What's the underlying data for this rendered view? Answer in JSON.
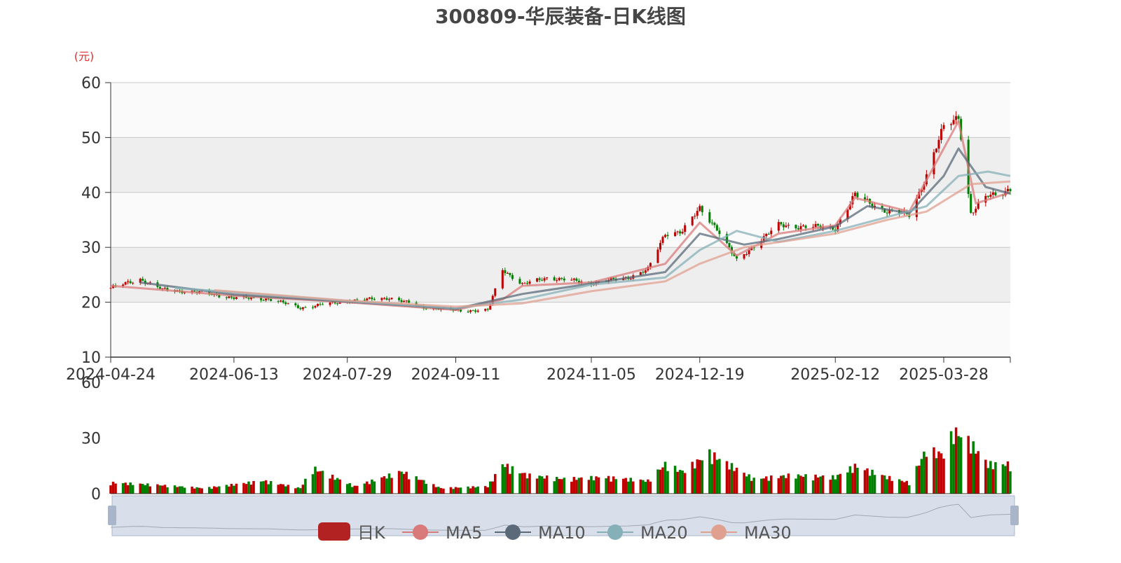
{
  "chart_data": [
    {
      "type": "candlestick",
      "title": "300809-华辰装备-日K线图",
      "ylabel": "(元)",
      "ylim": [
        10,
        60
      ],
      "yticks": [
        10,
        20,
        30,
        40,
        50,
        60
      ],
      "xlim": [
        "2024-04-24",
        "2025-04-24"
      ],
      "xticks": [
        "2024-04-24",
        "2024-06-13",
        "2024-07-29",
        "2024-09-11",
        "2024-11-05",
        "2024-12-19",
        "2025-02-12",
        "2025-03-28"
      ],
      "grid": true,
      "legend_position": "bottom",
      "legend": [
        "日K",
        "MA5",
        "MA10",
        "MA20",
        "MA30"
      ],
      "colors": {
        "up": "#c00000",
        "down": "#008000",
        "ma5": "#d97a7a",
        "ma10": "#5a6a78",
        "ma20": "#86b0b8",
        "ma30": "#e0a090"
      },
      "close_points": [
        [
          "2024-04-24",
          22.6
        ],
        [
          "2024-05-06",
          24.2
        ],
        [
          "2024-05-15",
          22.3
        ],
        [
          "2024-05-30",
          21.8
        ],
        [
          "2024-06-13",
          20.8
        ],
        [
          "2024-06-27",
          20.6
        ],
        [
          "2024-07-10",
          19.0
        ],
        [
          "2024-07-29",
          20.2
        ],
        [
          "2024-08-15",
          20.8
        ],
        [
          "2024-08-30",
          19.0
        ],
        [
          "2024-09-11",
          18.5
        ],
        [
          "2024-09-24",
          18.5
        ],
        [
          "2024-09-30",
          26.0
        ],
        [
          "2024-10-08",
          23.2
        ],
        [
          "2024-10-18",
          24.5
        ],
        [
          "2024-11-05",
          23.5
        ],
        [
          "2024-11-20",
          24.5
        ],
        [
          "2024-11-28",
          26.0
        ],
        [
          "2024-12-05",
          32.5
        ],
        [
          "2024-12-12",
          33.0
        ],
        [
          "2024-12-19",
          37.0
        ],
        [
          "2024-12-26",
          33.5
        ],
        [
          "2025-01-03",
          27.5
        ],
        [
          "2025-01-13",
          31.5
        ],
        [
          "2025-01-20",
          34.0
        ],
        [
          "2025-02-12",
          33.5
        ],
        [
          "2025-02-20",
          39.5
        ],
        [
          "2025-03-05",
          36.5
        ],
        [
          "2025-03-14",
          36.0
        ],
        [
          "2025-03-21",
          43.0
        ],
        [
          "2025-03-28",
          52.0
        ],
        [
          "2025-04-03",
          54.0
        ],
        [
          "2025-04-08",
          36.0
        ],
        [
          "2025-04-15",
          39.5
        ],
        [
          "2025-04-24",
          40.5
        ]
      ],
      "ma_points": {
        "MA5": [
          [
            "2024-04-24",
            23.0
          ],
          [
            "2024-06-13",
            21.2
          ],
          [
            "2024-07-29",
            20.0
          ],
          [
            "2024-09-11",
            18.6
          ],
          [
            "2024-09-30",
            20.5
          ],
          [
            "2024-10-08",
            23.0
          ],
          [
            "2024-11-05",
            23.6
          ],
          [
            "2024-12-05",
            27.0
          ],
          [
            "2024-12-19",
            34.5
          ],
          [
            "2025-01-03",
            28.5
          ],
          [
            "2025-01-20",
            32.5
          ],
          [
            "2025-02-12",
            34.0
          ],
          [
            "2025-02-20",
            39.0
          ],
          [
            "2025-03-14",
            36.5
          ],
          [
            "2025-03-28",
            48.0
          ],
          [
            "2025-04-03",
            53.0
          ],
          [
            "2025-04-10",
            38.0
          ],
          [
            "2025-04-24",
            40.0
          ]
        ],
        "MA10": [
          [
            "2024-05-06",
            23.6
          ],
          [
            "2024-06-13",
            21.4
          ],
          [
            "2024-07-29",
            20.1
          ],
          [
            "2024-09-11",
            18.8
          ],
          [
            "2024-10-08",
            21.5
          ],
          [
            "2024-11-05",
            23.4
          ],
          [
            "2024-12-05",
            25.5
          ],
          [
            "2024-12-19",
            32.5
          ],
          [
            "2025-01-06",
            30.5
          ],
          [
            "2025-01-20",
            31.5
          ],
          [
            "2025-02-12",
            33.8
          ],
          [
            "2025-02-25",
            37.5
          ],
          [
            "2025-03-14",
            36.2
          ],
          [
            "2025-03-28",
            43.0
          ],
          [
            "2025-04-03",
            48.0
          ],
          [
            "2025-04-14",
            41.0
          ],
          [
            "2025-04-24",
            39.8
          ]
        ],
        "MA20": [
          [
            "2024-05-20",
            22.6
          ],
          [
            "2024-06-13",
            21.8
          ],
          [
            "2024-07-29",
            20.2
          ],
          [
            "2024-09-11",
            18.9
          ],
          [
            "2024-10-08",
            20.5
          ],
          [
            "2024-11-05",
            23.2
          ],
          [
            "2024-12-05",
            24.5
          ],
          [
            "2024-12-19",
            29.5
          ],
          [
            "2025-01-03",
            33.0
          ],
          [
            "2025-01-20",
            31.0
          ],
          [
            "2025-02-12",
            33.0
          ],
          [
            "2025-03-05",
            35.5
          ],
          [
            "2025-03-21",
            37.5
          ],
          [
            "2025-04-03",
            43.0
          ],
          [
            "2025-04-15",
            43.8
          ],
          [
            "2025-04-24",
            43.0
          ]
        ],
        "MA30": [
          [
            "2024-06-05",
            22.2
          ],
          [
            "2024-07-29",
            20.3
          ],
          [
            "2024-09-11",
            19.2
          ],
          [
            "2024-10-08",
            19.8
          ],
          [
            "2024-11-05",
            22.0
          ],
          [
            "2024-12-05",
            23.8
          ],
          [
            "2024-12-19",
            27.0
          ],
          [
            "2025-01-06",
            30.0
          ],
          [
            "2025-02-12",
            32.5
          ],
          [
            "2025-03-05",
            35.0
          ],
          [
            "2025-03-21",
            36.5
          ],
          [
            "2025-04-08",
            41.5
          ],
          [
            "2025-04-24",
            42.0
          ]
        ]
      }
    },
    {
      "type": "bar",
      "ylim": [
        0,
        60
      ],
      "yticks": [
        0,
        30,
        60
      ],
      "volume_points": [
        [
          "2024-04-24",
          6
        ],
        [
          "2024-05-10",
          5
        ],
        [
          "2024-06-01",
          3
        ],
        [
          "2024-06-25",
          7
        ],
        [
          "2024-07-10",
          3
        ],
        [
          "2024-07-15",
          14
        ],
        [
          "2024-08-01",
          4
        ],
        [
          "2024-08-20",
          12
        ],
        [
          "2024-09-05",
          3
        ],
        [
          "2024-09-24",
          4
        ],
        [
          "2024-09-30",
          16
        ],
        [
          "2024-10-10",
          10
        ],
        [
          "2024-10-25",
          8
        ],
        [
          "2024-11-10",
          9
        ],
        [
          "2024-11-28",
          7
        ],
        [
          "2024-12-05",
          16
        ],
        [
          "2024-12-12",
          12
        ],
        [
          "2024-12-23",
          22
        ],
        [
          "2025-01-10",
          8
        ],
        [
          "2025-01-25",
          10
        ],
        [
          "2025-02-12",
          9
        ],
        [
          "2025-02-20",
          15
        ],
        [
          "2025-03-05",
          9
        ],
        [
          "2025-03-14",
          6
        ],
        [
          "2025-03-21",
          24
        ],
        [
          "2025-03-28",
          21
        ],
        [
          "2025-04-01",
          34
        ],
        [
          "2025-04-07",
          29
        ],
        [
          "2025-04-15",
          16
        ],
        [
          "2025-04-24",
          16
        ]
      ]
    }
  ]
}
